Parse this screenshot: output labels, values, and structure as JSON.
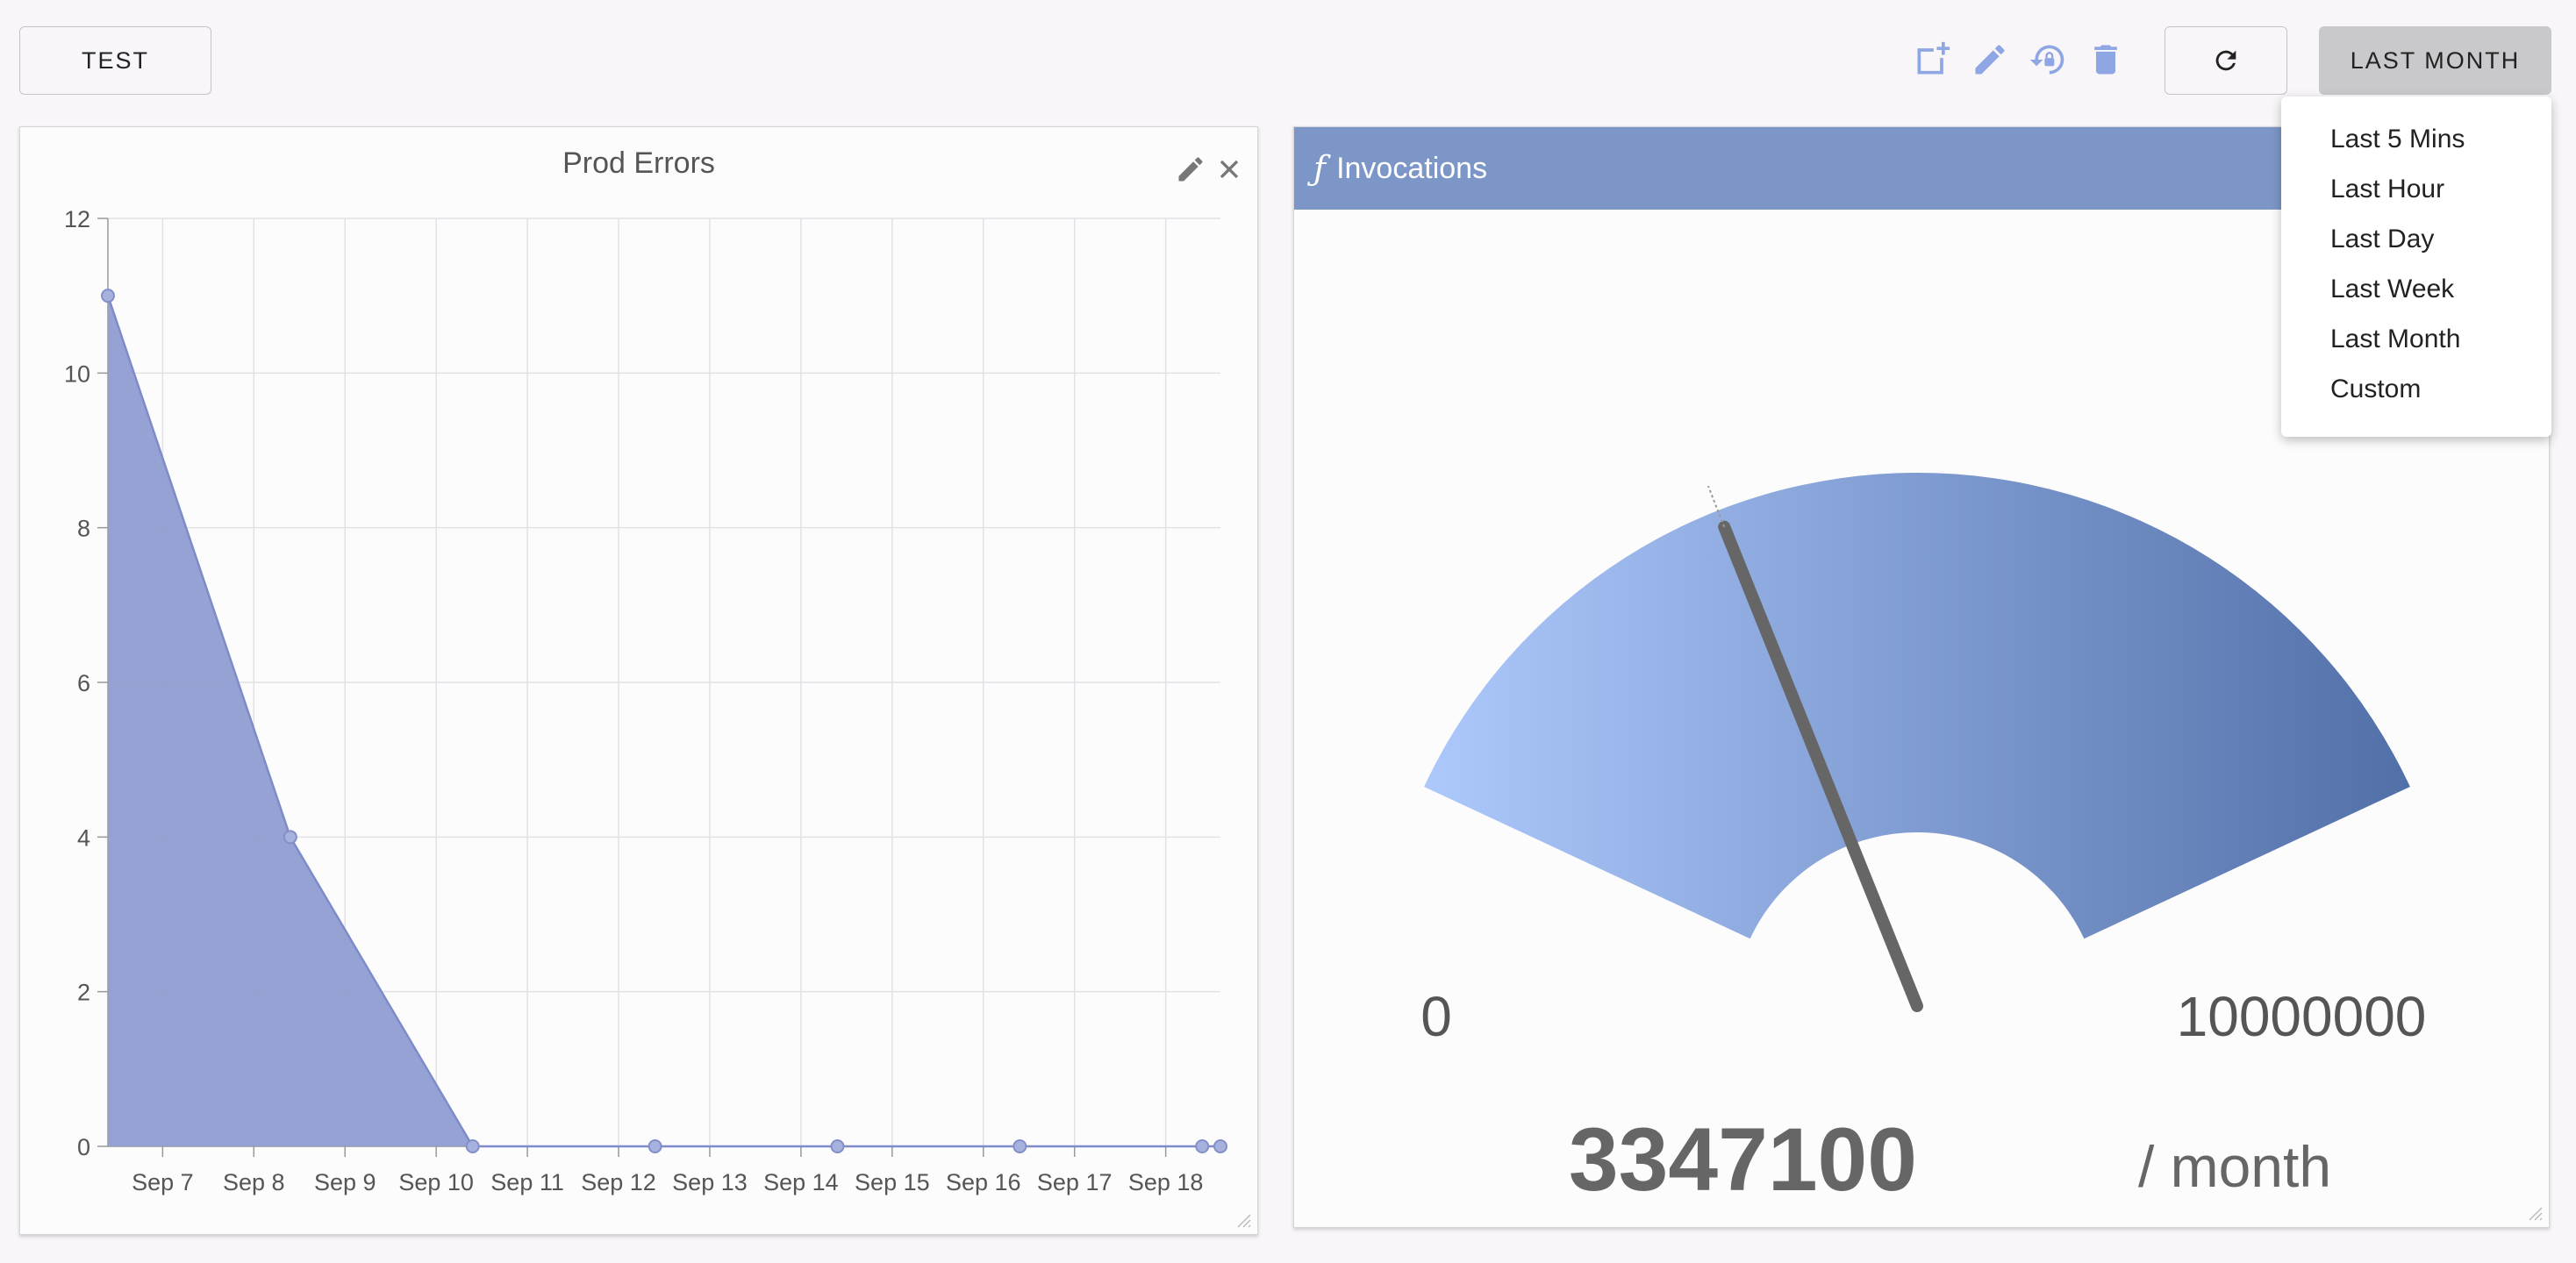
{
  "toolbar": {
    "test_label": "TEST",
    "range_label": "LAST MONTH",
    "icons": [
      "add-panel-icon",
      "edit-icon",
      "restore-lock-icon",
      "trash-icon",
      "refresh-icon"
    ],
    "accent": "#8ea6e4"
  },
  "range_menu": {
    "items": [
      "Last 5 Mins",
      "Last Hour",
      "Last Day",
      "Last Week",
      "Last Month",
      "Custom"
    ]
  },
  "errors_panel": {
    "title": "Prod Errors",
    "icons": [
      "edit-icon",
      "close-icon"
    ],
    "chart_data": {
      "type": "area",
      "title": "Prod Errors",
      "xlabel": "",
      "ylabel": "",
      "x_ticks": [
        "Sep 7",
        "Sep 8",
        "Sep 9",
        "Sep 10",
        "Sep 11",
        "Sep 12",
        "Sep 13",
        "Sep 14",
        "Sep 15",
        "Sep 16",
        "Sep 17",
        "Sep 18"
      ],
      "y_ticks": [
        0,
        2,
        4,
        6,
        8,
        10,
        12
      ],
      "ylim": [
        0,
        12
      ],
      "xlim": [
        "Sep 6.4",
        "Sep 18.6"
      ],
      "points": [
        {
          "x": "Sep 6.4",
          "y": 11
        },
        {
          "x": "Sep 8.4",
          "y": 4
        },
        {
          "x": "Sep 10.4",
          "y": 0
        },
        {
          "x": "Sep 12.4",
          "y": 0
        },
        {
          "x": "Sep 14.4",
          "y": 0
        },
        {
          "x": "Sep 16.4",
          "y": 0
        },
        {
          "x": "Sep 18.4",
          "y": 0
        },
        {
          "x": "Sep 18.6",
          "y": 0
        }
      ],
      "grid": true,
      "color": "#8f9dd1"
    }
  },
  "gauge_panel": {
    "title": "Invocations",
    "icon": "function-icon",
    "min_label": "0",
    "max_label": "10000000",
    "min": 0,
    "max": 10000000,
    "value": 3347100,
    "value_label": "3347100",
    "unit_label": "/ month",
    "colors": {
      "start": "#adc8fb",
      "end": "#5270a8"
    }
  }
}
